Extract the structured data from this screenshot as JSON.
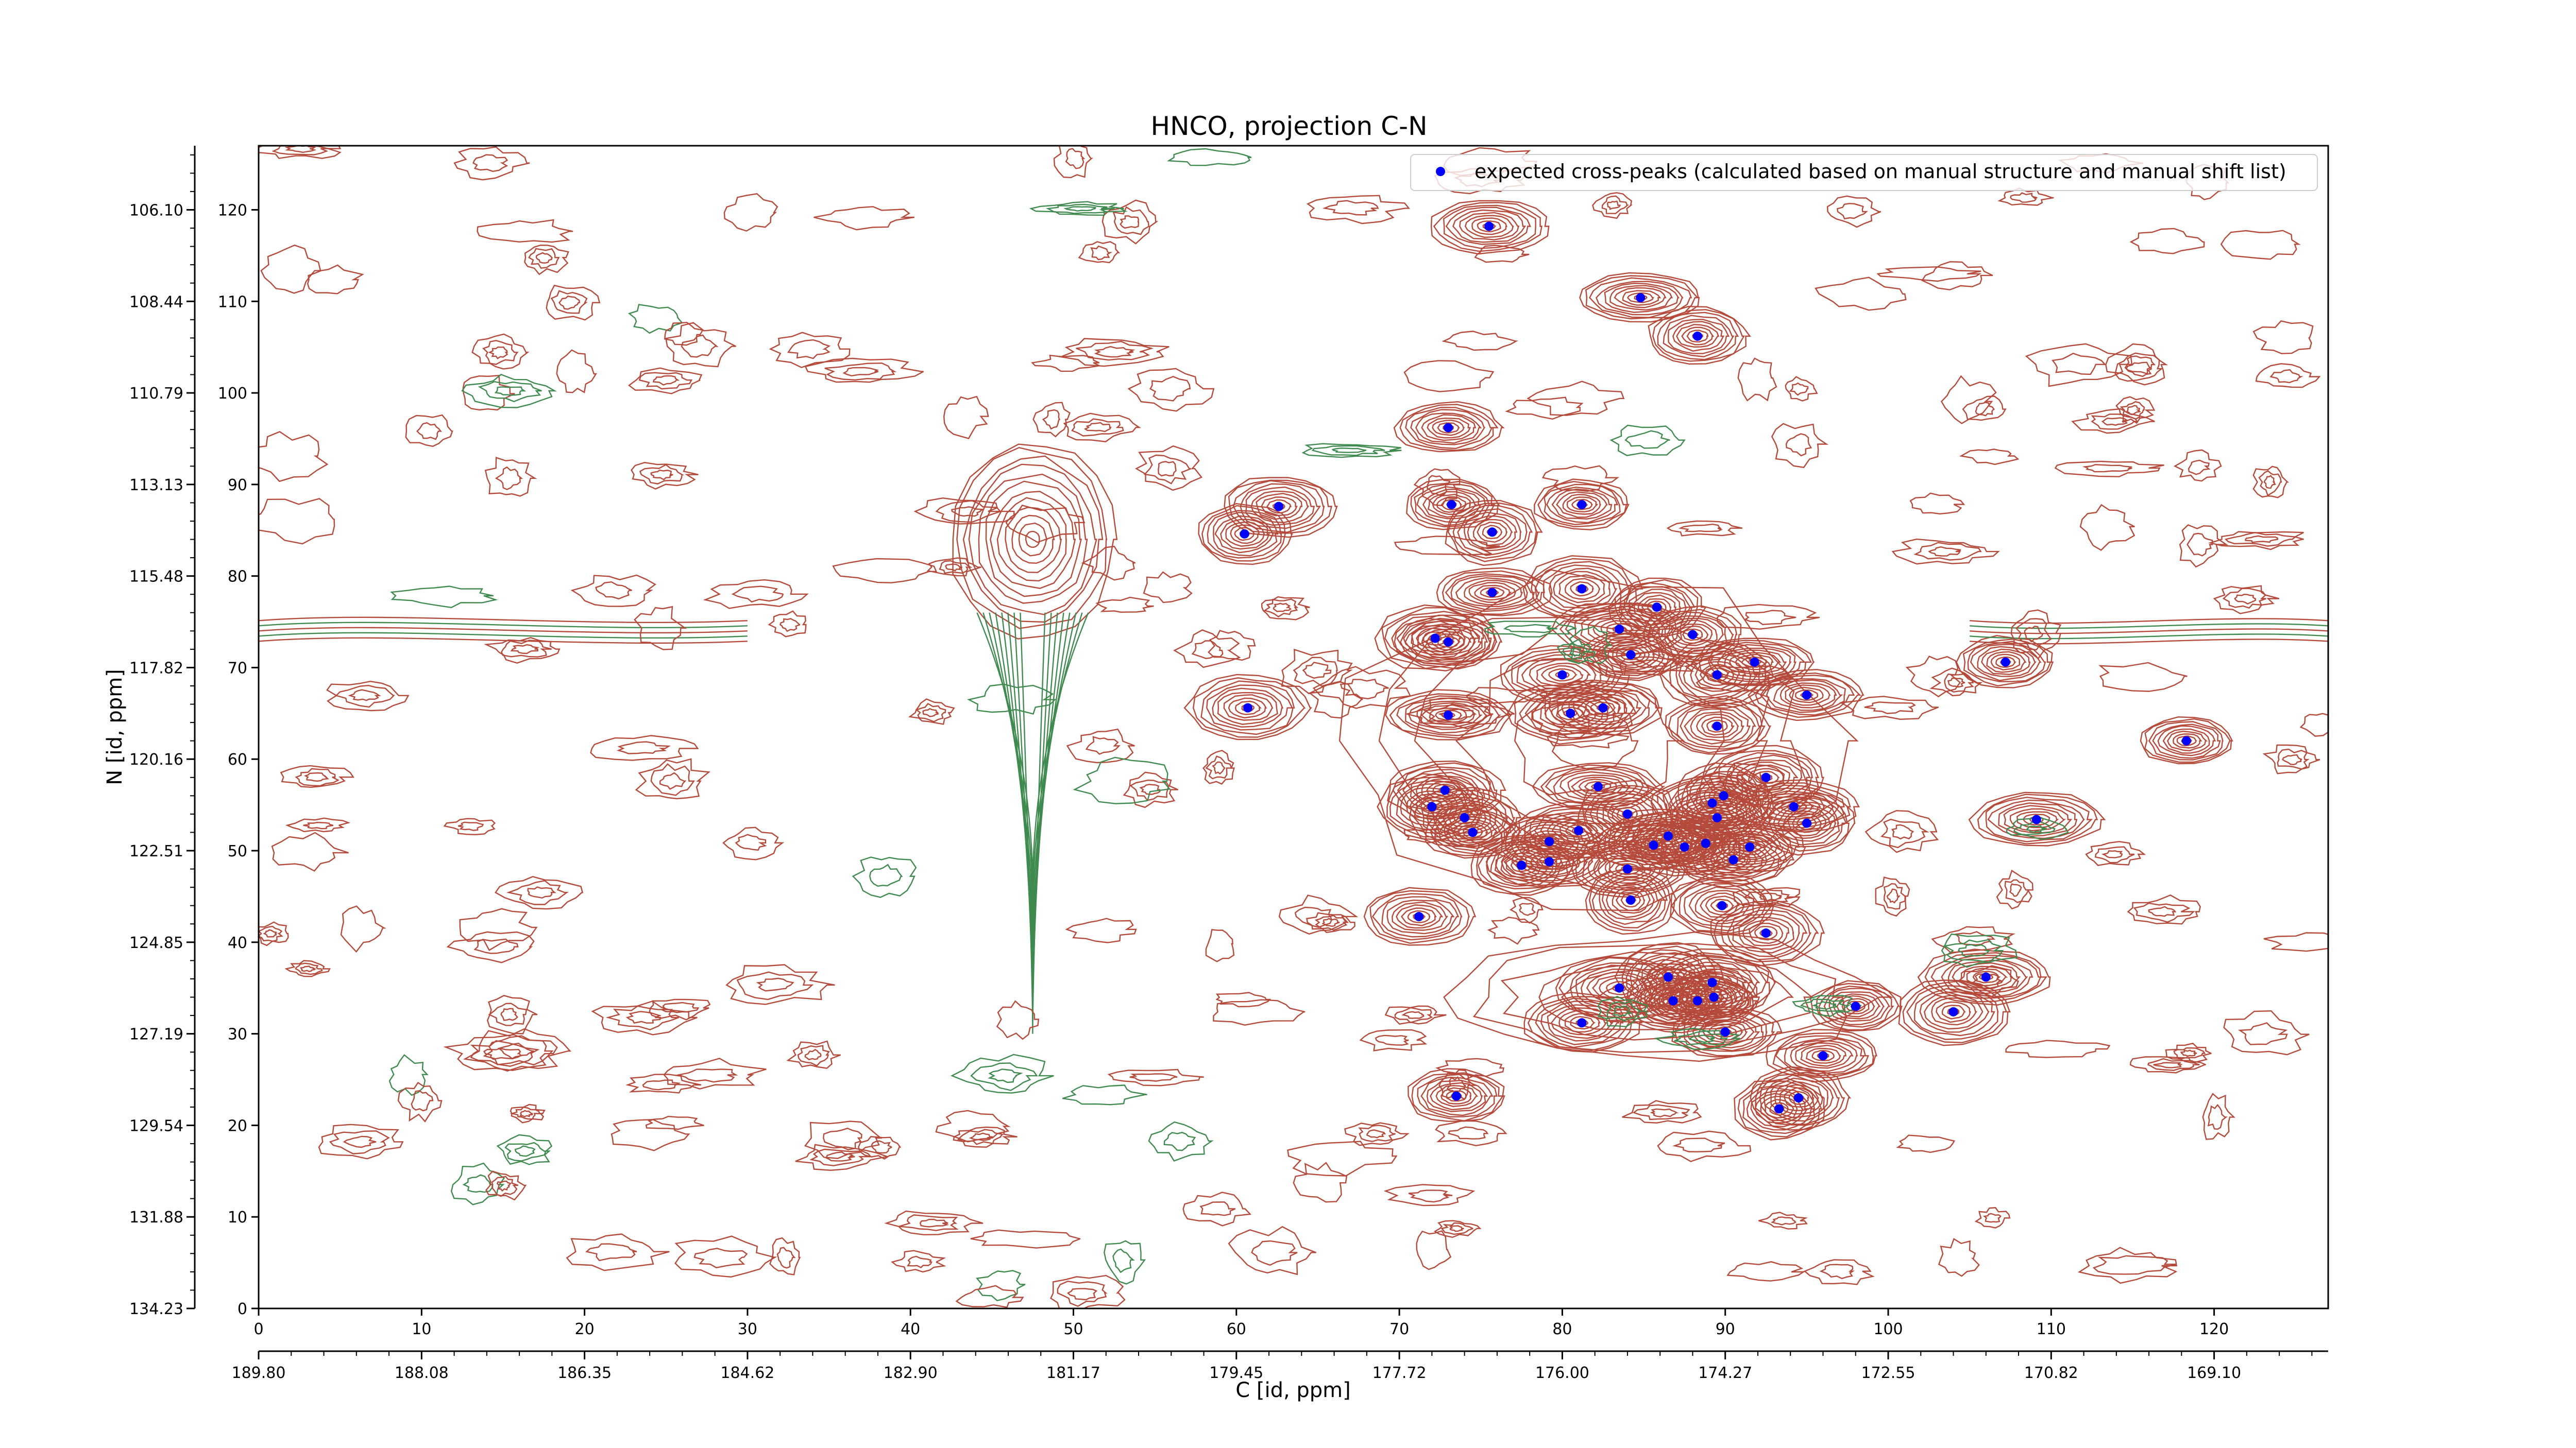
{
  "chart_data": {
    "type": "scatter",
    "title": "HNCO, projection C-N",
    "xlabel": "C [id, ppm]",
    "ylabel": "N [id, ppm]",
    "xlim": [
      0,
      127
    ],
    "ylim": [
      0,
      127
    ],
    "x_index_ticks": [
      "0",
      "10",
      "20",
      "30",
      "40",
      "50",
      "60",
      "70",
      "80",
      "90",
      "100",
      "110",
      "120"
    ],
    "x_ppm_ticks": [
      "189.80",
      "188.08",
      "186.35",
      "184.62",
      "182.90",
      "181.17",
      "179.45",
      "177.72",
      "176.00",
      "174.27",
      "172.55",
      "170.82",
      "169.10"
    ],
    "y_index_ticks": [
      "0",
      "10",
      "20",
      "30",
      "40",
      "50",
      "60",
      "70",
      "80",
      "90",
      "100",
      "110",
      "120"
    ],
    "y_ppm_ticks": [
      "134.23",
      "131.88",
      "129.54",
      "127.19",
      "124.85",
      "122.51",
      "120.16",
      "117.82",
      "115.48",
      "113.13",
      "110.79",
      "108.44",
      "106.10"
    ],
    "legend": {
      "label": "expected cross-peaks (calculated based on manual structure and manual shift list)",
      "position": "top-right"
    },
    "colors": {
      "positive_contour": "#b5493a",
      "negative_contour": "#3f8a4e",
      "marker": "#0000ff"
    },
    "series": [
      {
        "name": "expected cross-peaks (calculated based on manual structure and manual shift list)",
        "points": [
          [
            75.5,
            118.2
          ],
          [
            84.8,
            110.4
          ],
          [
            88.3,
            106.2
          ],
          [
            73.0,
            96.2
          ],
          [
            62.6,
            87.6
          ],
          [
            60.5,
            84.6
          ],
          [
            73.2,
            87.8
          ],
          [
            75.7,
            84.8
          ],
          [
            81.2,
            87.8
          ],
          [
            75.7,
            78.2
          ],
          [
            81.2,
            78.6
          ],
          [
            85.8,
            76.6
          ],
          [
            72.2,
            73.2
          ],
          [
            73.0,
            72.8
          ],
          [
            83.5,
            74.2
          ],
          [
            88.0,
            73.6
          ],
          [
            84.2,
            71.4
          ],
          [
            91.8,
            70.6
          ],
          [
            80.0,
            69.2
          ],
          [
            89.5,
            69.2
          ],
          [
            95.0,
            67.0
          ],
          [
            60.7,
            65.6
          ],
          [
            73.0,
            64.8
          ],
          [
            80.5,
            65.0
          ],
          [
            82.5,
            65.6
          ],
          [
            89.5,
            63.6
          ],
          [
            72.8,
            56.6
          ],
          [
            82.2,
            57.0
          ],
          [
            92.5,
            58.0
          ],
          [
            72.0,
            54.8
          ],
          [
            89.2,
            55.2
          ],
          [
            89.9,
            56.0
          ],
          [
            94.2,
            54.8
          ],
          [
            84.0,
            54.0
          ],
          [
            89.5,
            53.6
          ],
          [
            95.0,
            53.0
          ],
          [
            74.0,
            53.6
          ],
          [
            74.5,
            52.0
          ],
          [
            81.0,
            52.2
          ],
          [
            86.5,
            51.6
          ],
          [
            79.2,
            51.0
          ],
          [
            85.6,
            50.6
          ],
          [
            87.5,
            50.4
          ],
          [
            88.8,
            50.8
          ],
          [
            91.5,
            50.4
          ],
          [
            77.5,
            48.4
          ],
          [
            79.2,
            48.8
          ],
          [
            84.0,
            48.0
          ],
          [
            90.5,
            49.0
          ],
          [
            84.2,
            44.6
          ],
          [
            89.8,
            44.0
          ],
          [
            71.2,
            42.8
          ],
          [
            92.5,
            41.0
          ],
          [
            86.5,
            36.2
          ],
          [
            89.2,
            35.6
          ],
          [
            83.5,
            35.0
          ],
          [
            88.3,
            33.6
          ],
          [
            89.3,
            34.0
          ],
          [
            86.8,
            33.6
          ],
          [
            106.0,
            36.2
          ],
          [
            98.0,
            33.0
          ],
          [
            104.0,
            32.4
          ],
          [
            81.2,
            31.2
          ],
          [
            90.0,
            30.2
          ],
          [
            96.0,
            27.6
          ],
          [
            73.5,
            23.2
          ],
          [
            94.5,
            23.0
          ],
          [
            93.3,
            21.8
          ],
          [
            107.2,
            70.6
          ],
          [
            118.3,
            62.0
          ],
          [
            109.1,
            53.4
          ]
        ]
      }
    ]
  }
}
